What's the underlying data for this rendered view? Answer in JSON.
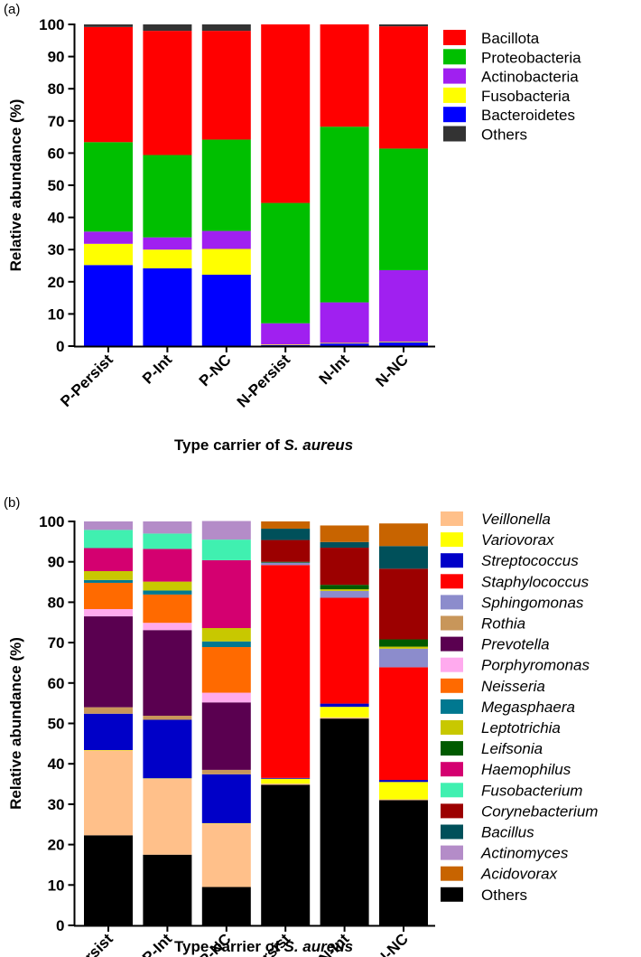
{
  "chart_data": [
    {
      "type": "bar",
      "stacked": true,
      "panel_label": "(a)",
      "categories": [
        "P-Persist",
        "P-Int",
        "P-NC",
        "N-Persist",
        "N-Int",
        "N-NC"
      ],
      "ylabel": "Relative abundance (%)",
      "xlabel_prefix": "Type carrier of ",
      "xlabel_species": "S. aureus",
      "ylim": [
        0,
        100
      ],
      "yticks": [
        "0",
        "10",
        "20",
        "30",
        "40",
        "50",
        "60",
        "70",
        "80",
        "90",
        "100"
      ],
      "legend_position": "top-right",
      "series": [
        {
          "name": "Bacteroidetes",
          "color": "#0000ff",
          "values": [
            25.2,
            24.2,
            22.2,
            0.3,
            0.8,
            1.2
          ]
        },
        {
          "name": "Fusobacteria",
          "color": "#ffff00",
          "values": [
            6.6,
            5.8,
            8.0,
            0.2,
            0.2,
            0.2
          ]
        },
        {
          "name": "Actinobacteria",
          "color": "#a020f0",
          "values": [
            3.8,
            3.8,
            5.6,
            6.6,
            12.6,
            22.2
          ]
        },
        {
          "name": "Proteobacteria",
          "color": "#00bf00",
          "values": [
            27.8,
            25.6,
            28.4,
            37.4,
            54.6,
            37.8
          ]
        },
        {
          "name": "Bacillota",
          "color": "#ff0000",
          "values": [
            35.8,
            38.6,
            33.8,
            55.5,
            31.8,
            38.0
          ]
        },
        {
          "name": "Others",
          "color": "#333333",
          "values": [
            0.8,
            2.0,
            2.0,
            0.0,
            0.0,
            0.6
          ]
        }
      ]
    },
    {
      "type": "bar",
      "stacked": true,
      "panel_label": "(b)",
      "categories": [
        "P-Persist",
        "P-Int",
        "P-NC",
        "N-Persist",
        "N-Int",
        "N-NC"
      ],
      "ylabel": "Relative abundance (%)",
      "xlabel_prefix": "Type carrier of ",
      "xlabel_species": "S. aureus",
      "ylim": [
        0,
        100
      ],
      "yticks": [
        "0",
        "10",
        "20",
        "30",
        "40",
        "50",
        "60",
        "70",
        "80",
        "90",
        "100"
      ],
      "legend_position": "right",
      "series": [
        {
          "name": "Others",
          "color": "#000000",
          "values": [
            22.3,
            17.5,
            9.5,
            34.8,
            51.2,
            31.0
          ]
        },
        {
          "name": "Veillonella",
          "color": "#ffc08a",
          "values": [
            21.0,
            18.8,
            15.7,
            0.3,
            0.3,
            0.2
          ]
        },
        {
          "name": "Variovorax",
          "color": "#ffff00",
          "values": [
            0.1,
            0.1,
            0.1,
            1.2,
            2.6,
            4.3
          ]
        },
        {
          "name": "Streptococcus",
          "color": "#0000c8",
          "values": [
            9.0,
            14.5,
            12.1,
            0.2,
            0.8,
            0.5
          ]
        },
        {
          "name": "Rothia",
          "color": "#c8965a",
          "values": [
            1.6,
            1.0,
            1.1,
            0.0,
            0.0,
            0.0
          ]
        },
        {
          "name": "Prevotella",
          "color": "#5a0050",
          "values": [
            22.5,
            21.2,
            16.7,
            0.0,
            0.0,
            0.0
          ]
        },
        {
          "name": "Porphyromonas",
          "color": "#ffaaee",
          "values": [
            1.8,
            1.8,
            2.4,
            0.0,
            0.0,
            0.0
          ]
        },
        {
          "name": "Neisseria",
          "color": "#ff6a00",
          "values": [
            6.5,
            7.0,
            11.3,
            0.0,
            0.0,
            0.0
          ]
        },
        {
          "name": "Megasphaera",
          "color": "#007890",
          "values": [
            0.7,
            1.0,
            1.4,
            0.0,
            0.0,
            0.0
          ]
        },
        {
          "name": "Staphylococcus",
          "color": "#ff0000",
          "values": [
            0.0,
            0.0,
            0.0,
            52.7,
            26.2,
            27.9
          ]
        },
        {
          "name": "Sphingomonas",
          "color": "#8c8ccc",
          "values": [
            0.0,
            0.0,
            0.0,
            0.6,
            1.7,
            4.6
          ]
        },
        {
          "name": "Leptotrichia",
          "color": "#c8c800",
          "values": [
            2.2,
            2.2,
            3.3,
            0.0,
            0.4,
            0.5
          ]
        },
        {
          "name": "Leifsonia",
          "color": "#005a00",
          "values": [
            0.0,
            0.0,
            0.0,
            0.2,
            1.1,
            1.8
          ]
        },
        {
          "name": "Haemophilus",
          "color": "#d40070",
          "values": [
            5.7,
            8.1,
            16.8,
            0.0,
            0.0,
            0.0
          ]
        },
        {
          "name": "Fusobacterium",
          "color": "#40f0b0",
          "values": [
            4.5,
            3.8,
            5.1,
            0.0,
            0.0,
            0.0
          ]
        },
        {
          "name": "Corynebacterium",
          "color": "#9c0000",
          "values": [
            0.0,
            0.0,
            0.0,
            5.4,
            9.2,
            17.5
          ]
        },
        {
          "name": "Bacillus",
          "color": "#00505a",
          "values": [
            0.0,
            0.0,
            0.0,
            2.8,
            1.4,
            5.6
          ]
        },
        {
          "name": "Actinomyces",
          "color": "#b48cc8",
          "values": [
            2.1,
            3.0,
            4.6,
            0.0,
            0.0,
            0.0
          ]
        },
        {
          "name": "Acidovorax",
          "color": "#c86400",
          "values": [
            0.0,
            0.0,
            0.0,
            1.8,
            4.1,
            5.6
          ]
        }
      ],
      "legend_order": [
        "Veillonella",
        "Variovorax",
        "Streptococcus",
        "Staphylococcus",
        "Sphingomonas",
        "Rothia",
        "Prevotella",
        "Porphyromonas",
        "Neisseria",
        "Megasphaera",
        "Leptotrichia",
        "Leifsonia",
        "Haemophilus",
        "Fusobacterium",
        "Corynebacterium",
        "Bacillus",
        "Actinomyces",
        "Acidovorax",
        "Others"
      ],
      "legend_italic_except": [
        "Others"
      ]
    }
  ],
  "legend_a_order": [
    "Bacillota",
    "Proteobacteria",
    "Actinobacteria",
    "Fusobacteria",
    "Bacteroidetes",
    "Others"
  ]
}
